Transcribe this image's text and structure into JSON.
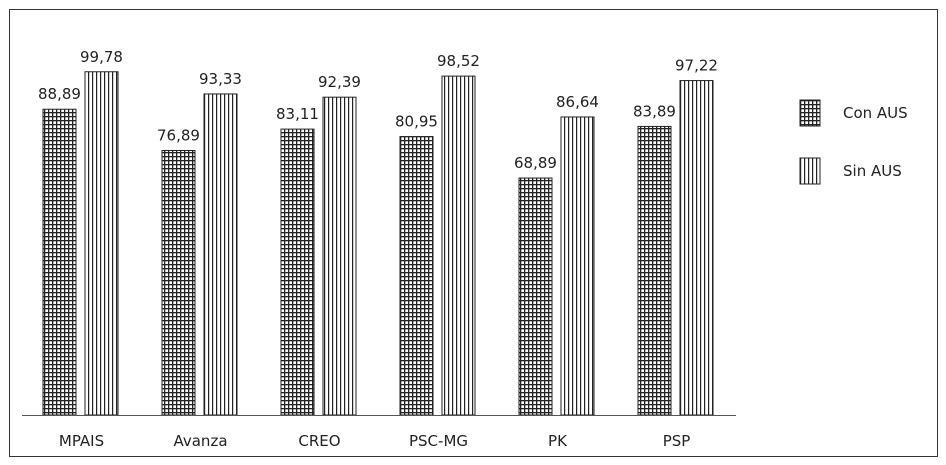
{
  "chart_data": {
    "type": "bar",
    "categories": [
      "MPAIS",
      "Avanza",
      "CREO",
      "PSC-MG",
      "PK",
      "PSP"
    ],
    "series": [
      {
        "name": "Con AUS",
        "values": [
          88.89,
          76.89,
          83.11,
          80.95,
          68.89,
          83.89
        ],
        "labels": [
          "88,89",
          "76,89",
          "83,11",
          "80,95",
          "68,89",
          "83,89"
        ],
        "pattern": "grid"
      },
      {
        "name": "Sin AUS",
        "values": [
          99.78,
          93.33,
          92.39,
          98.52,
          86.64,
          97.22
        ],
        "labels": [
          "99,78",
          "93,33",
          "92,39",
          "98,52",
          "86,64",
          "97,22"
        ],
        "pattern": "vertical-lines"
      }
    ],
    "ylim": [
      0,
      100
    ],
    "grid": false,
    "legend_position": "right",
    "colors": {
      "ink": "#222222",
      "frame": "#333333",
      "background": "#ffffff"
    }
  }
}
